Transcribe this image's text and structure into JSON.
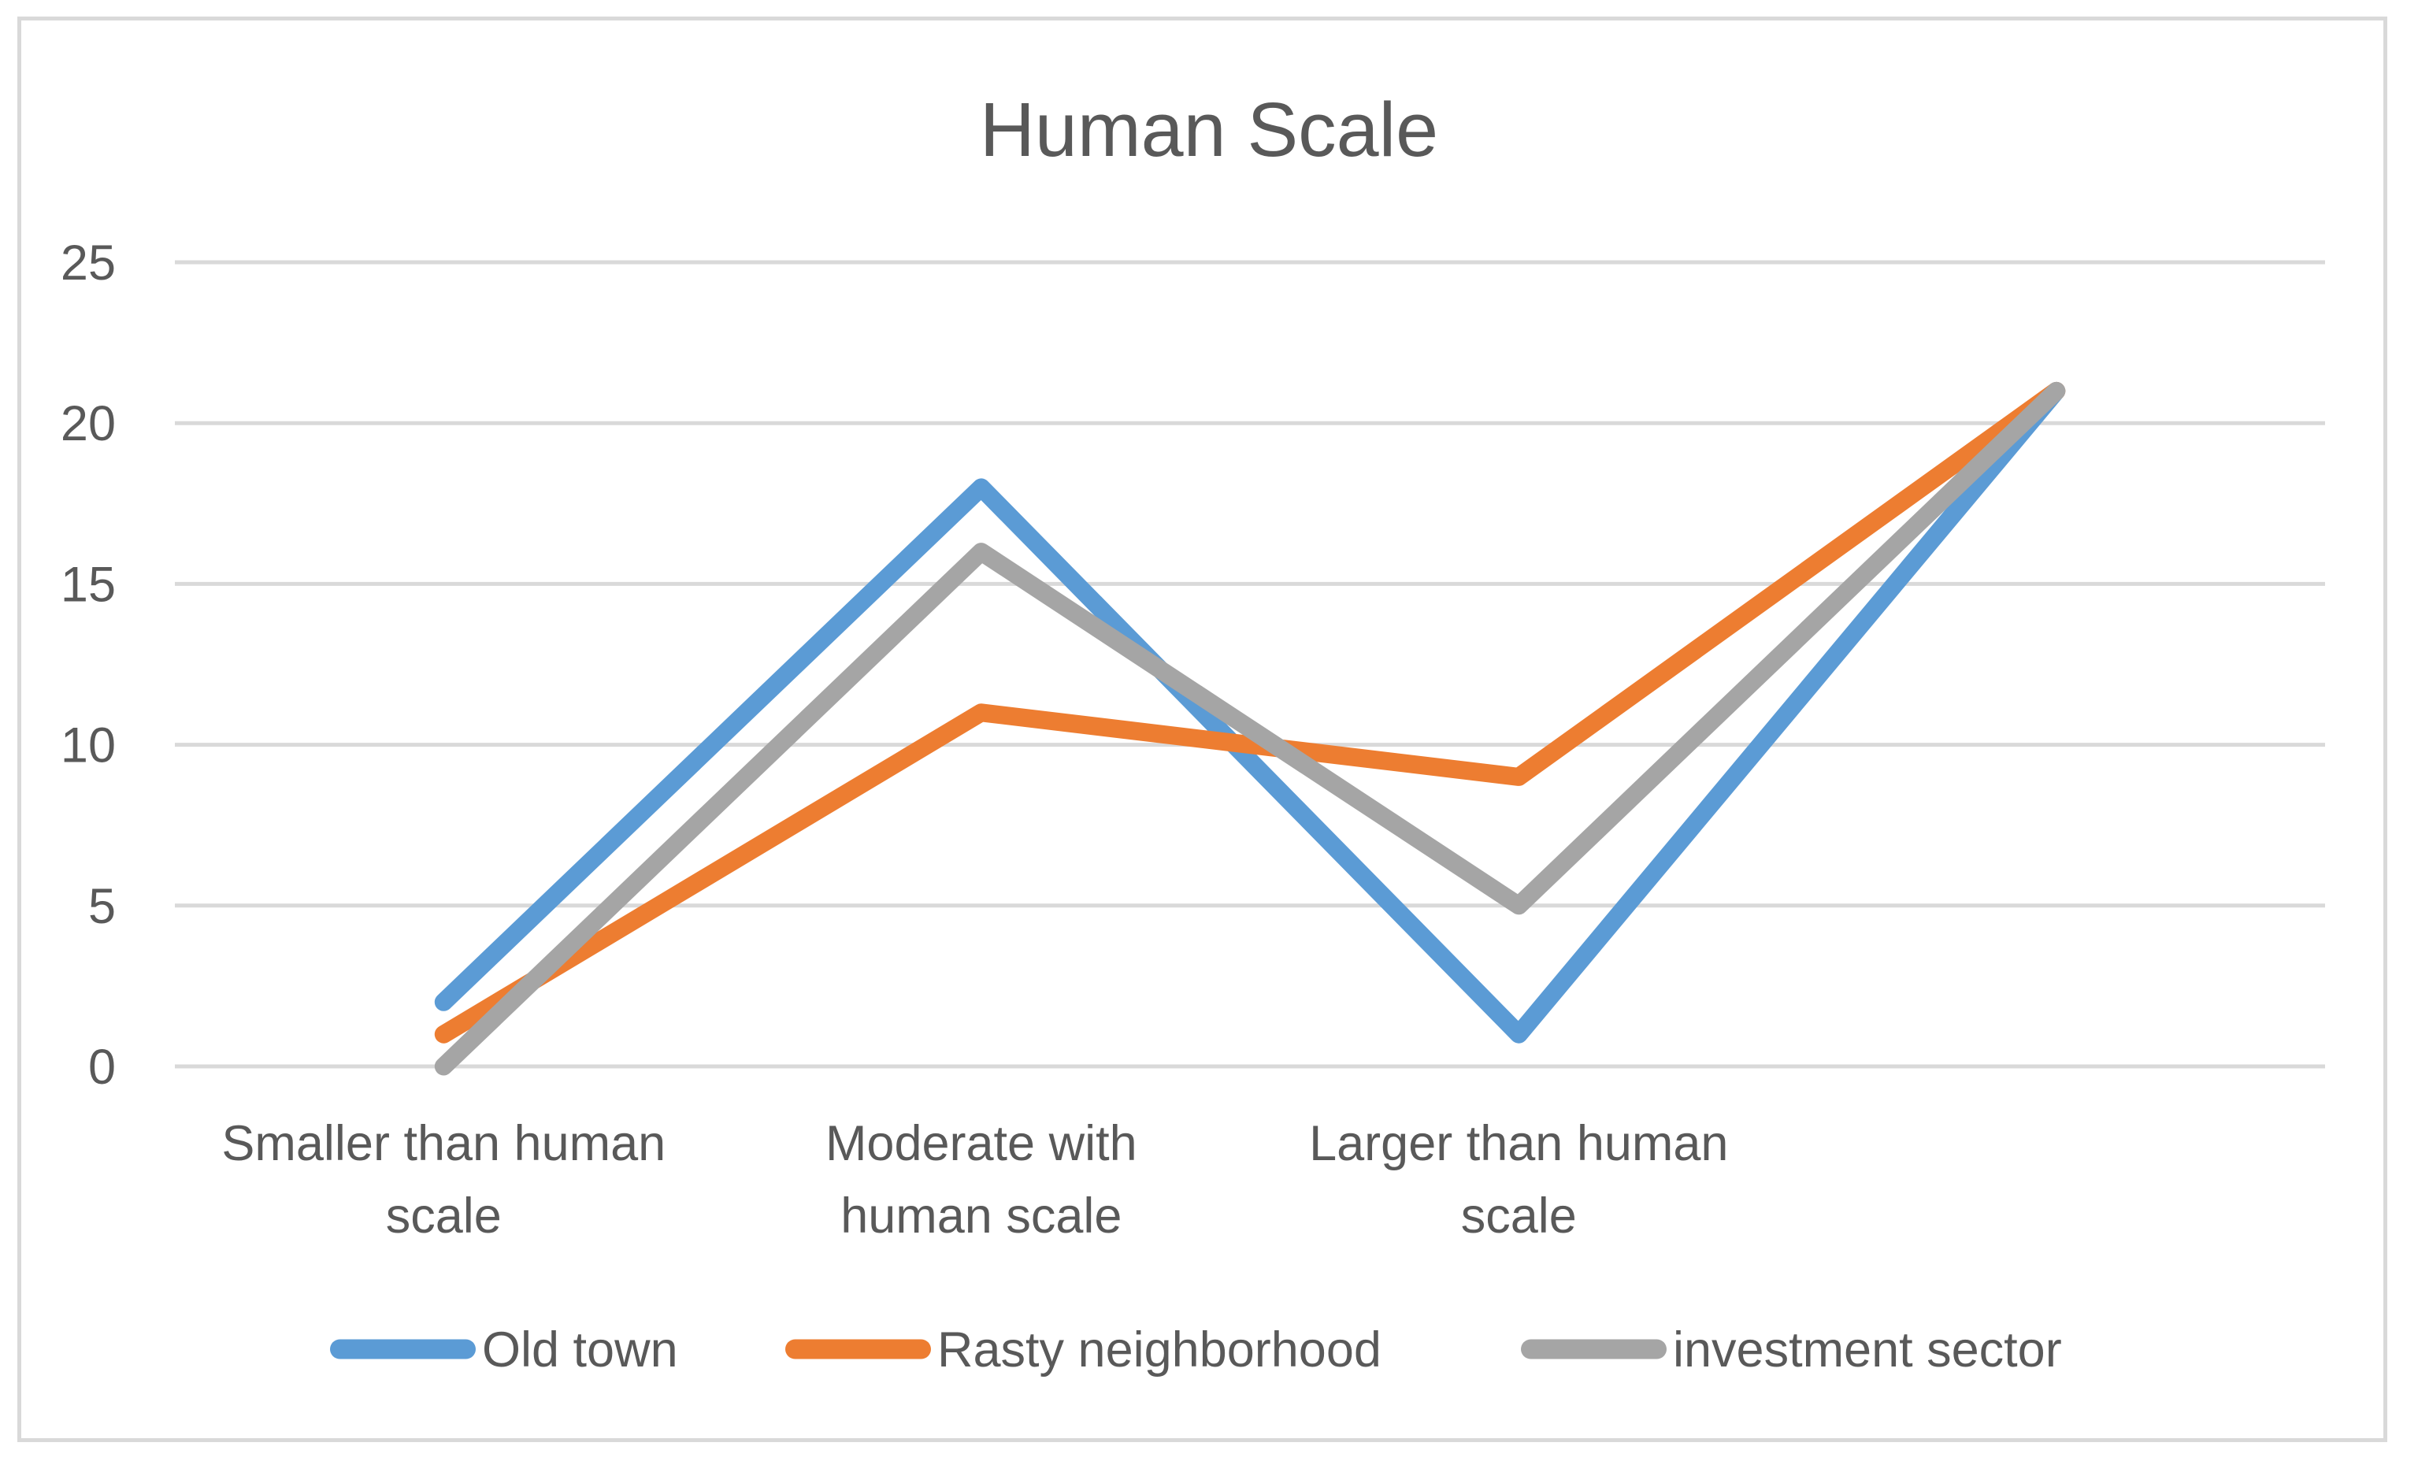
{
  "chart_data": {
    "type": "line",
    "title": "Human Scale",
    "categories": [
      "Smaller than human scale",
      "Moderate  with human scale",
      "Larger than human scale",
      ""
    ],
    "category_label_lines": [
      [
        "Smaller than human",
        "scale"
      ],
      [
        "Moderate  with",
        "human scale"
      ],
      [
        "Larger than human",
        "scale"
      ],
      []
    ],
    "series": [
      {
        "name": "Old town",
        "color": "#5B9BD5",
        "values": [
          2,
          18,
          1,
          21
        ]
      },
      {
        "name": "Rasty neighborhood",
        "color": "#ED7D31",
        "values": [
          1,
          11,
          9,
          21
        ]
      },
      {
        "name": "investment sector",
        "color": "#A5A5A5",
        "values": [
          0,
          16,
          5,
          21
        ]
      }
    ],
    "y_axis": {
      "min": 0,
      "max": 25,
      "step": 5,
      "tick_labels": [
        "0",
        "5",
        "10",
        "15",
        "20",
        "25"
      ]
    },
    "grid": true,
    "legend_position": "bottom",
    "colors": {
      "text": "#595959",
      "gridline": "#D9D9D9",
      "frame": "#D9D9D9",
      "background": "#FFFFFF"
    }
  }
}
